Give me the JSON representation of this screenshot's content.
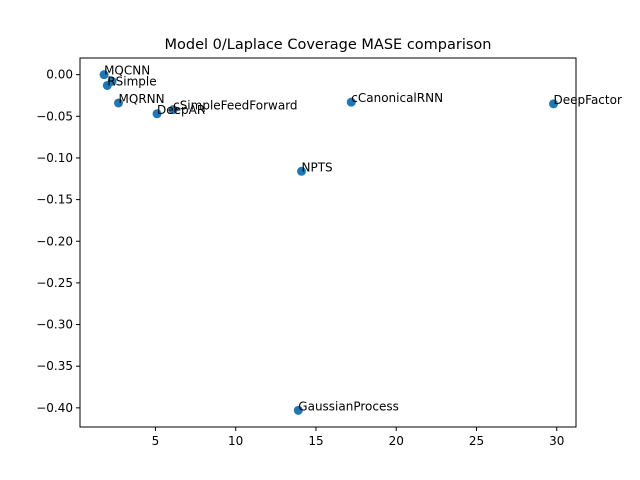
{
  "chart_data": {
    "type": "scatter",
    "title": "Model 0/Laplace Coverage MASE comparison",
    "xlabel": "",
    "ylabel": "",
    "xlim": [
      0.3,
      31.2
    ],
    "ylim": [
      -0.423,
      0.02
    ],
    "x_ticks": [
      5,
      10,
      15,
      20,
      25,
      30
    ],
    "x_tick_labels": [
      "5",
      "10",
      "15",
      "20",
      "25",
      "30"
    ],
    "y_ticks": [
      0.0,
      -0.05,
      -0.1,
      -0.15,
      -0.2,
      -0.25,
      -0.3,
      -0.35,
      -0.4
    ],
    "y_tick_labels": [
      "0.00",
      "−0.05",
      "−0.10",
      "−0.15",
      "−0.20",
      "−0.25",
      "−0.30",
      "−0.35",
      "−0.40"
    ],
    "grid": false,
    "marker_color": "#1f77b4",
    "points": [
      {
        "label": "MQCNN",
        "x": 1.8,
        "y": 0.0
      },
      {
        "label": "RSimple",
        "x": 2.0,
        "y": -0.013
      },
      {
        "label": "",
        "x": 2.3,
        "y": -0.008
      },
      {
        "label": "MQRNN",
        "x": 2.7,
        "y": -0.034
      },
      {
        "label": "DeepAR",
        "x": 5.1,
        "y": -0.047
      },
      {
        "label": "cSimpleFeedForward",
        "x": 6.1,
        "y": -0.042
      },
      {
        "label": "NPTS",
        "x": 14.1,
        "y": -0.116
      },
      {
        "label": "GaussianProcess",
        "x": 13.9,
        "y": -0.403
      },
      {
        "label": "cCanonicalRNN",
        "x": 17.2,
        "y": -0.033
      },
      {
        "label": "DeepFactor",
        "x": 29.8,
        "y": -0.035
      }
    ]
  }
}
